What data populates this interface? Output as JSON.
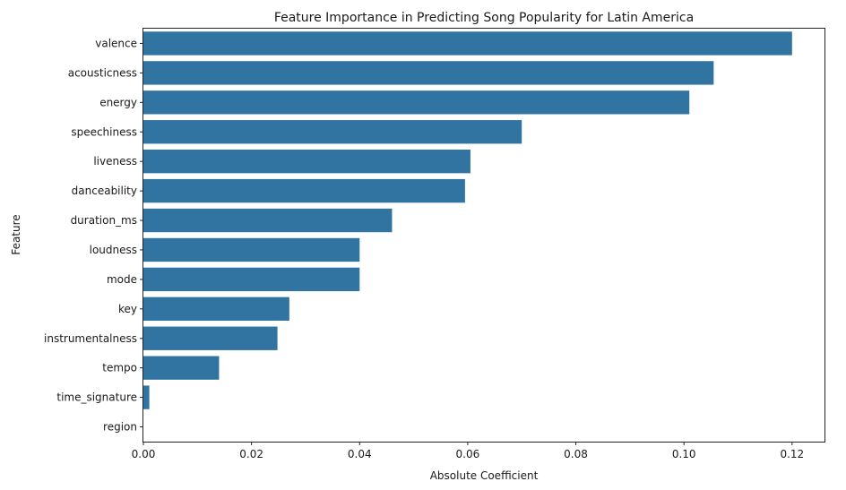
{
  "chart_data": {
    "type": "bar",
    "orientation": "horizontal",
    "title": "Feature Importance in Predicting Song Popularity for Latin America",
    "xlabel": "Absolute Coefficient",
    "ylabel": "Feature",
    "xlim": [
      0,
      0.126
    ],
    "xticks": [
      0.0,
      0.02,
      0.04,
      0.06,
      0.08,
      0.1,
      0.12
    ],
    "xtick_labels": [
      "0.00",
      "0.02",
      "0.04",
      "0.06",
      "0.08",
      "0.10",
      "0.12"
    ],
    "grid": false,
    "bar_color": "#3274a1",
    "categories": [
      "valence",
      "acousticness",
      "energy",
      "speechiness",
      "liveness",
      "danceability",
      "duration_ms",
      "loudness",
      "mode",
      "key",
      "instrumentalness",
      "tempo",
      "time_signature",
      "region"
    ],
    "values": [
      0.12,
      0.1055,
      0.101,
      0.07,
      0.0605,
      0.0595,
      0.046,
      0.04,
      0.04,
      0.027,
      0.0248,
      0.014,
      0.0011,
      0.0
    ]
  }
}
